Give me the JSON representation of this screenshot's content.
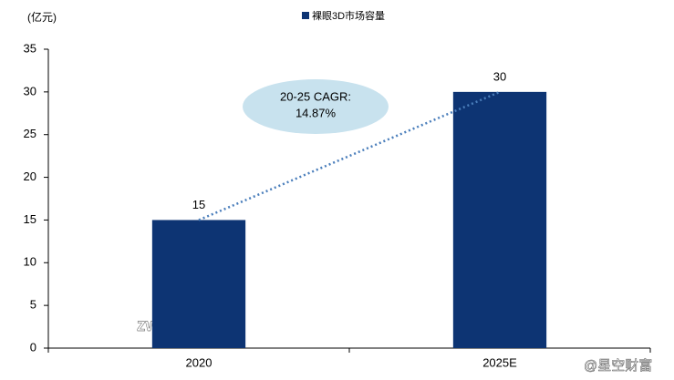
{
  "chart_data": {
    "type": "bar",
    "unit_label": "(亿元)",
    "categories": [
      "2020",
      "2025E"
    ],
    "series": [
      {
        "name": "裸眼3D市场容量",
        "color": "#0d3473",
        "values": [
          15,
          30
        ]
      }
    ],
    "ylim": [
      0,
      35
    ],
    "yticks": [
      0,
      5,
      10,
      15,
      20,
      25,
      30,
      35
    ],
    "data_labels": true,
    "annotation": [
      "20-25 CAGR:",
      "14.87%"
    ],
    "watermarks": [
      "zwdasu.cn",
      "@星空财富"
    ]
  }
}
